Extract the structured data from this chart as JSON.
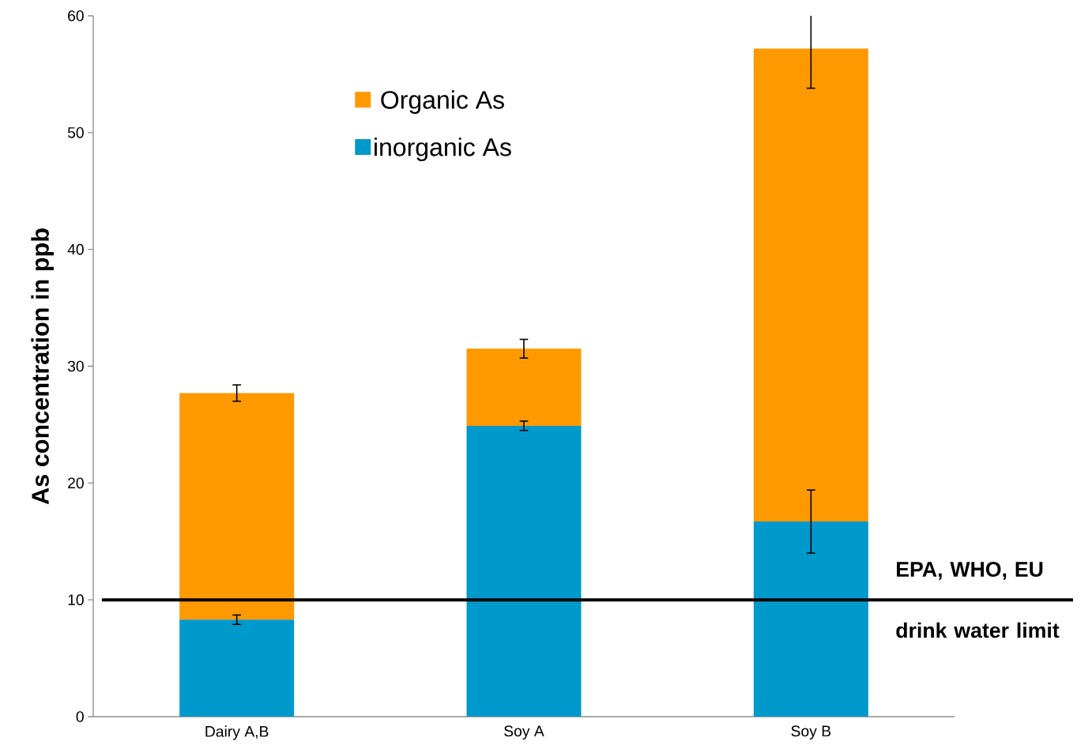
{
  "chart_data": {
    "type": "bar",
    "stacked": true,
    "ylabel": "As concentration in ppb",
    "categories": [
      "Dairy A,B",
      "Soy A",
      "Soy B"
    ],
    "series": [
      {
        "name": "inorganic As",
        "color": "#0099cc",
        "values": [
          8.3,
          24.9,
          16.7
        ],
        "errors": [
          0.4,
          0.4,
          2.7
        ]
      },
      {
        "name": "Organic As",
        "color": "#ff9900",
        "values": [
          19.4,
          6.6,
          40.5
        ],
        "errors": [
          0.7,
          0.8,
          [
            53.8,
            60
          ]
        ]
      }
    ],
    "ylim": [
      0,
      60
    ],
    "yticks": [
      0,
      10,
      20,
      30,
      40,
      50,
      60
    ],
    "grid": false,
    "legend": "top",
    "ref_lines": [
      {
        "axis": "y",
        "value": 10,
        "label": "EPA, WHO, EU drink water limit",
        "color": "#000000"
      }
    ]
  }
}
